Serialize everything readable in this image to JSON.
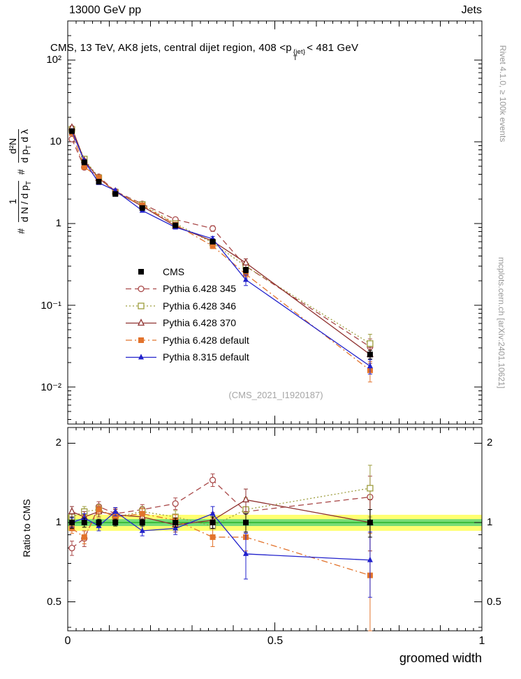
{
  "header": {
    "left": "13000 GeV pp",
    "right": "Jets"
  },
  "panel_title": {
    "part1": "CMS, 13 TeV, AK8 jets, central dijet region, 408 <p",
    "sup": "{jet}",
    "sub": "T",
    "part2": "< 481 GeV"
  },
  "ylabel_main": {
    "hash1": "#",
    "frac1_num": "1",
    "frac1_den_a": "d N / d p",
    "frac1_den_sub": "T",
    "hash2": "#",
    "frac2_num": "d²N",
    "frac2_den_a": "d p",
    "frac2_den_sub": "T",
    "frac2_den_b": " d λ"
  },
  "ylabel_ratio": "Ratio to CMS",
  "xlabel": "groomed width",
  "watermark": "(CMS_2021_I1920187)",
  "side_notes": {
    "top": "Rivet 4.1.0, ≥ 100k events",
    "bottom": "mcplots.cern.ch [arXiv:2401.10621]"
  },
  "axes": {
    "main_ytick_labels": [
      "10²",
      "10",
      "1",
      "10⁻¹",
      "10⁻²"
    ],
    "ratio_ytick_labels": [
      "2",
      "1",
      "0.5"
    ],
    "xtick_labels": [
      "0",
      "0.5",
      "1"
    ]
  },
  "chart_data": {
    "type": "line",
    "title": "CMS, 13 TeV, AK8 jets, central dijet region, 408 < pT{jet} < 481 GeV",
    "xlabel": "groomed width",
    "ylabel_top": "1/(dN/dpT) d²N/(dpT dλ)",
    "ylabel_bottom": "Ratio to CMS",
    "xlim": [
      0,
      1
    ],
    "ylim_top_log": [
      0.0035,
      300
    ],
    "ylim_ratio_log": [
      0.39,
      2.3
    ],
    "x": [
      0.01,
      0.04,
      0.075,
      0.115,
      0.18,
      0.26,
      0.35,
      0.43,
      0.73
    ],
    "cms": {
      "name": "CMS",
      "color": "#000000",
      "marker": "square-filled",
      "values": [
        13.5,
        5.6,
        3.25,
        2.3,
        1.55,
        0.95,
        0.6,
        0.27,
        0.025
      ],
      "ratio": [
        1,
        1,
        1,
        1,
        1,
        1,
        1,
        1,
        1
      ],
      "ratio_err": [
        0.05,
        0.04,
        0.03,
        0.03,
        0.03,
        0.04,
        0.05,
        0.08,
        0.12
      ]
    },
    "series": [
      {
        "name": "Pythia 6.428 345",
        "color": "#a94949",
        "line": "dashed",
        "marker": "circle-open",
        "values": [
          10.8,
          4.87,
          3.74,
          2.48,
          1.74,
          1.12,
          0.87,
          0.3,
          0.031
        ],
        "ratio": [
          0.8,
          0.87,
          1.15,
          1.08,
          1.12,
          1.18,
          1.45,
          1.1,
          1.25
        ],
        "err": [
          0.05,
          0.06,
          0.05,
          0.05,
          0.05,
          0.06,
          0.08,
          0.12,
          0.25
        ]
      },
      {
        "name": "Pythia 6.428 346",
        "color": "#9d9d3d",
        "line": "dotted",
        "marker": "square-open",
        "values": [
          14.2,
          6.16,
          3.64,
          2.42,
          1.71,
          1.0,
          0.58,
          0.3,
          0.034
        ],
        "ratio": [
          1.05,
          1.1,
          1.12,
          1.05,
          1.1,
          1.05,
          0.97,
          1.12,
          1.35
        ],
        "err": [
          0.05,
          0.05,
          0.05,
          0.05,
          0.05,
          0.06,
          0.08,
          0.12,
          0.3
        ]
      },
      {
        "name": "Pythia 6.428 370",
        "color": "#8f3230",
        "line": "solid",
        "marker": "triangle-open",
        "values": [
          14.9,
          5.88,
          3.58,
          2.46,
          1.63,
          0.93,
          0.61,
          0.33,
          0.025
        ],
        "ratio": [
          1.1,
          1.05,
          1.1,
          1.07,
          1.05,
          0.98,
          1.02,
          1.22,
          1.0
        ],
        "err": [
          0.05,
          0.05,
          0.05,
          0.05,
          0.05,
          0.06,
          0.07,
          0.12,
          0.22
        ]
      },
      {
        "name": "Pythia 6.428 default",
        "color": "#e2732c",
        "line": "dashdot",
        "marker": "square-filled",
        "values": [
          12.8,
          4.93,
          3.64,
          2.42,
          1.67,
          0.97,
          0.53,
          0.24,
          0.016
        ],
        "ratio": [
          0.95,
          0.88,
          1.12,
          1.05,
          1.08,
          1.02,
          0.88,
          0.88,
          0.63
        ],
        "err": [
          0.04,
          0.05,
          0.04,
          0.04,
          0.05,
          0.05,
          0.07,
          0.1,
          0.28
        ]
      },
      {
        "name": "Pythia 8.315 default",
        "color": "#2222cc",
        "line": "solid",
        "marker": "triangle-filled",
        "values": [
          13.5,
          5.82,
          3.15,
          2.53,
          1.44,
          0.9,
          0.65,
          0.205,
          0.018
        ],
        "ratio": [
          1.0,
          1.04,
          0.97,
          1.1,
          0.93,
          0.95,
          1.08,
          0.76,
          0.72
        ],
        "err": [
          0.04,
          0.04,
          0.04,
          0.04,
          0.04,
          0.05,
          0.07,
          0.15,
          0.2
        ]
      }
    ],
    "bands": {
      "yellow": [
        0.93,
        1.07
      ],
      "green": [
        0.97,
        1.03
      ],
      "yellow_color": "#ffff70",
      "green_color": "#77dd77",
      "line_color": "#00a000"
    },
    "legend_position": "middle-left",
    "grid": false
  }
}
